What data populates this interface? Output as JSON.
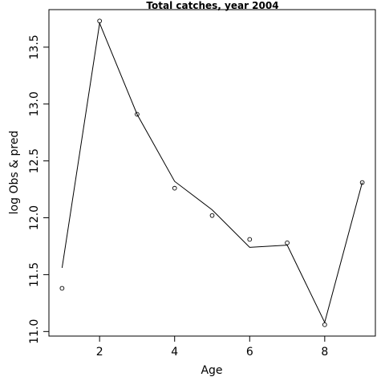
{
  "chart_data": {
    "type": "scatter",
    "title": "Total catches, year 2004",
    "xlabel": "Age",
    "ylabel": "log Obs & pred",
    "xlim": [
      0.65,
      9.35
    ],
    "ylim": [
      10.96,
      13.83
    ],
    "x_ticks": [
      "2",
      "4",
      "6",
      "8"
    ],
    "y_ticks": [
      "11.0",
      "11.5",
      "12.0",
      "12.5",
      "13.0",
      "13.5"
    ],
    "x_tick_values": [
      2,
      4,
      6,
      8
    ],
    "y_tick_values": [
      11.0,
      11.5,
      12.0,
      12.5,
      13.0,
      13.5
    ],
    "grid": false,
    "series": [
      {
        "type": "points",
        "x": [
          1,
          2,
          3,
          4,
          5,
          6,
          7,
          8,
          9
        ],
        "y": [
          11.38,
          13.73,
          12.91,
          12.26,
          12.02,
          11.81,
          11.78,
          11.06,
          12.31
        ]
      },
      {
        "type": "line",
        "x": [
          1,
          2,
          3,
          4,
          5,
          6,
          7,
          8,
          9
        ],
        "y": [
          11.56,
          13.71,
          12.91,
          12.32,
          12.07,
          11.74,
          11.76,
          11.08,
          12.31
        ]
      }
    ]
  }
}
